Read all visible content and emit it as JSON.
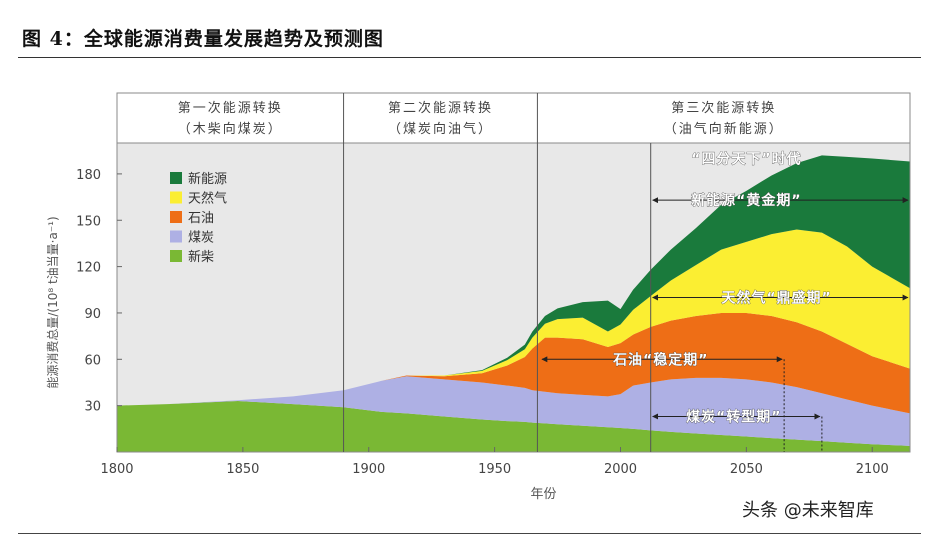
{
  "figure_title": "图 4：全球能源消费量发展趋势及预测图",
  "watermark": "头条 @未来智库",
  "colors": {
    "new_energy": "#1a7a3c",
    "natural_gas": "#fbee32",
    "oil": "#ee6e16",
    "coal": "#aeb0e4",
    "firewood": "#7ab834",
    "header_bg": "#ffffff",
    "plot_bg": "#e8e8e8",
    "frame": "#8a8a8a"
  },
  "chart_data": {
    "type": "area",
    "stacked": true,
    "xlabel": "年份",
    "ylabel": "能源消费总量/(10⁸ t油当量·a⁻¹)",
    "xlim": [
      1800,
      2115
    ],
    "ylim": [
      0,
      200
    ],
    "x_ticks": [
      1800,
      1850,
      1900,
      1950,
      2000,
      2050,
      2100
    ],
    "y_ticks": [
      30,
      60,
      90,
      120,
      150,
      180
    ],
    "x": [
      1800,
      1820,
      1848,
      1870,
      1890,
      1905,
      1915,
      1930,
      1945,
      1955,
      1962,
      1965,
      1970,
      1975,
      1985,
      1995,
      2000,
      2005,
      2012,
      2020,
      2030,
      2040,
      2050,
      2060,
      2070,
      2080,
      2090,
      2100,
      2115
    ],
    "series": [
      {
        "name": "新柴",
        "key": "firewood",
        "values": [
          30,
          31,
          33,
          31,
          29,
          26,
          25,
          23,
          21,
          20,
          19.5,
          19,
          18.5,
          18,
          17,
          16,
          15.5,
          15,
          14,
          13,
          12,
          11,
          10,
          9,
          8,
          7,
          6,
          5,
          4
        ]
      },
      {
        "name": "煤炭",
        "key": "coal",
        "values": [
          0,
          0,
          0.5,
          5,
          11,
          20,
          24,
          24,
          24,
          23,
          22,
          21,
          20.5,
          20,
          20,
          20,
          22,
          28,
          31,
          34,
          36,
          37,
          37,
          36,
          34,
          31,
          28,
          25,
          21
        ]
      },
      {
        "name": "石油",
        "key": "oil",
        "values": [
          0,
          0,
          0,
          0,
          0,
          0,
          0.5,
          2,
          6,
          13,
          20,
          27,
          35,
          36,
          36,
          32,
          33,
          33,
          36,
          38,
          40,
          42,
          43,
          43,
          42,
          40,
          36,
          32,
          29
        ]
      },
      {
        "name": "天然气",
        "key": "natural_gas",
        "values": [
          0,
          0,
          0,
          0,
          0,
          0,
          0,
          0.5,
          1.5,
          3.5,
          5,
          7,
          9,
          12,
          14,
          10,
          12,
          16,
          20,
          26,
          33,
          41,
          46,
          53,
          60,
          64,
          63,
          58,
          52
        ]
      },
      {
        "name": "新能源",
        "key": "new_energy",
        "values": [
          0,
          0,
          0,
          0,
          0,
          0,
          0,
          0,
          0.5,
          1.5,
          3,
          4,
          5,
          7,
          10,
          20,
          10,
          13,
          17,
          20,
          24,
          29,
          33,
          38,
          43,
          50,
          58,
          70,
          82
        ]
      }
    ],
    "legend": [
      "新能源",
      "天然气",
      "石油",
      "煤炭",
      "新柴"
    ],
    "legend_position": "top-left",
    "eras": [
      {
        "label1": "第一次能源转换",
        "label2": "（木柴向煤炭）",
        "start": 1800,
        "end": 1890
      },
      {
        "label1": "第二次能源转换",
        "label2": "（煤炭向油气）",
        "start": 1890,
        "end": 1967
      },
      {
        "label1": "第三次能源转换",
        "label2": "（油气向新能源）",
        "start": 1967,
        "end": 2115
      }
    ],
    "dividers": [
      1890,
      1967,
      2012
    ],
    "annotations": [
      {
        "text": "“四分天下”时代",
        "x": 2050,
        "y": 190,
        "arrow": false
      },
      {
        "text": "新能源“黄金期”",
        "x": 2050,
        "y": 163,
        "from": 2012,
        "to": 2115,
        "arrow_y": 163,
        "dashed_end": false
      },
      {
        "text": "天然气“鼎盛期”",
        "x": 2062,
        "y": 100,
        "from": 2012,
        "to": 2115,
        "arrow_y": 100,
        "dashed_end": false
      },
      {
        "text": "石油“稳定期”",
        "x": 2016,
        "y": 60,
        "from": 1968,
        "to": 2065,
        "arrow_y": 60,
        "dashed_end": 2065
      },
      {
        "text": "煤炭“转型期”",
        "x": 2045,
        "y": 23,
        "from": 2012,
        "to": 2080,
        "arrow_y": 23,
        "dashed_end": 2080
      }
    ]
  }
}
